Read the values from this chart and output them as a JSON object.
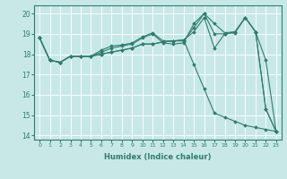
{
  "xlabel": "Humidex (Indice chaleur)",
  "xlim": [
    -0.5,
    23.5
  ],
  "ylim": [
    13.8,
    20.4
  ],
  "yticks": [
    14,
    15,
    16,
    17,
    18,
    19,
    20
  ],
  "xticks": [
    0,
    1,
    2,
    3,
    4,
    5,
    6,
    7,
    8,
    9,
    10,
    11,
    12,
    13,
    14,
    15,
    16,
    17,
    18,
    19,
    20,
    21,
    22,
    23
  ],
  "bg_color": "#c8e8e8",
  "line_color": "#2e7d6e",
  "grid_color": "#ffffff",
  "series": [
    {
      "x": [
        0,
        1,
        2,
        3,
        4,
        5,
        6,
        7,
        8,
        9,
        10,
        11,
        12,
        13,
        14,
        15,
        16,
        17,
        18,
        19,
        20,
        21,
        22,
        23
      ],
      "y": [
        18.8,
        17.7,
        17.6,
        17.9,
        17.9,
        17.9,
        18.0,
        18.1,
        18.2,
        18.3,
        18.5,
        18.5,
        18.6,
        18.65,
        18.7,
        19.1,
        19.8,
        18.3,
        19.0,
        19.1,
        19.8,
        19.1,
        17.7,
        14.2
      ]
    },
    {
      "x": [
        0,
        1,
        2,
        3,
        4,
        5,
        6,
        7,
        8,
        9,
        10,
        11,
        12,
        13,
        14,
        15,
        16,
        17,
        18,
        19,
        20,
        21,
        22,
        23
      ],
      "y": [
        18.8,
        17.7,
        17.6,
        17.9,
        17.9,
        17.9,
        18.1,
        18.3,
        18.4,
        18.5,
        18.8,
        19.0,
        18.55,
        18.5,
        18.55,
        19.5,
        20.0,
        19.0,
        19.0,
        19.05,
        19.8,
        19.1,
        15.3,
        14.2
      ]
    },
    {
      "x": [
        0,
        1,
        2,
        3,
        4,
        5,
        6,
        7,
        8,
        9,
        10,
        11,
        12,
        13,
        14,
        15,
        16,
        17,
        18,
        19,
        20,
        21,
        22,
        23
      ],
      "y": [
        18.8,
        17.7,
        17.6,
        17.9,
        17.9,
        17.9,
        18.2,
        18.4,
        18.45,
        18.55,
        18.85,
        19.05,
        18.65,
        18.65,
        18.65,
        19.3,
        20.0,
        19.5,
        19.05,
        19.1,
        19.8,
        19.1,
        15.3,
        14.2
      ]
    },
    {
      "x": [
        0,
        1,
        2,
        3,
        4,
        5,
        6,
        7,
        8,
        9,
        10,
        11,
        12,
        13,
        14,
        15,
        16,
        17,
        18,
        19,
        20,
        21,
        22,
        23
      ],
      "y": [
        18.8,
        17.7,
        17.6,
        17.9,
        17.9,
        17.9,
        18.0,
        18.1,
        18.2,
        18.3,
        18.5,
        18.5,
        18.6,
        18.65,
        18.7,
        17.5,
        16.3,
        15.1,
        14.9,
        14.7,
        14.5,
        14.4,
        14.3,
        14.2
      ]
    }
  ]
}
